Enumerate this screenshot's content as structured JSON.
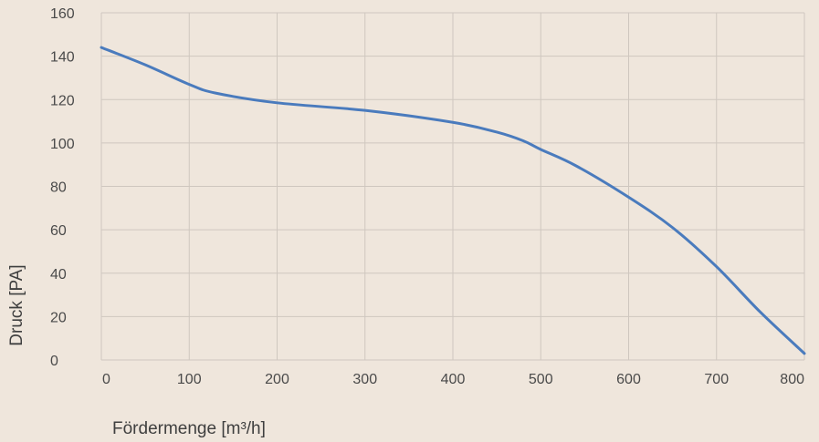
{
  "chart_data": {
    "type": "line",
    "title": "",
    "xlabel": "Fördermenge [m³/h]",
    "ylabel": "Druck [PA]",
    "xlim": [
      0,
      800
    ],
    "ylim": [
      0,
      160
    ],
    "x_ticks": [
      0,
      100,
      200,
      300,
      400,
      500,
      600,
      700,
      800
    ],
    "y_ticks": [
      0,
      20,
      40,
      60,
      80,
      100,
      120,
      140,
      160
    ],
    "grid": true,
    "series": [
      {
        "color": "#4a7bbd",
        "x": [
          0,
          50,
          100,
          130,
          200,
          300,
          400,
          450,
          480,
          500,
          540,
          600,
          650,
          700,
          750,
          800
        ],
        "y": [
          144,
          136,
          127,
          123,
          118.5,
          115,
          109.5,
          105,
          101,
          97,
          89.5,
          75,
          61,
          43,
          22,
          3
        ]
      }
    ]
  }
}
